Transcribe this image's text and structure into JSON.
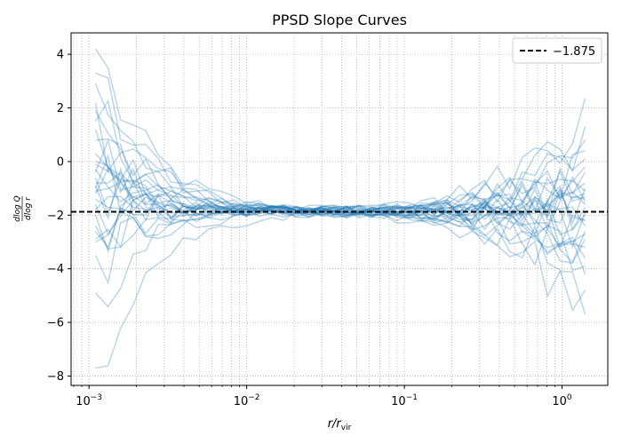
{
  "chart_data": {
    "type": "line",
    "title": "PPSD Slope Curves",
    "xlabel": "r/r_vir",
    "xlabel_main": "r/r",
    "xlabel_sub": "vir",
    "ylabel": "dlog Q / dlog r",
    "ylabel_num": "dlog Q",
    "ylabel_den": "dlog r",
    "xscale": "log",
    "xlim": [
      0.00077,
      1.95
    ],
    "ylim": [
      -8.35,
      4.8
    ],
    "x_ticks": [
      {
        "value": 0.001,
        "base": "10",
        "exp": "−3"
      },
      {
        "value": 0.01,
        "base": "10",
        "exp": "−2"
      },
      {
        "value": 0.1,
        "base": "10",
        "exp": "−1"
      },
      {
        "value": 1,
        "base": "10",
        "exp": "0"
      }
    ],
    "y_ticks": [
      {
        "value": 4,
        "label": "4"
      },
      {
        "value": 2,
        "label": "2"
      },
      {
        "value": 0,
        "label": "0"
      },
      {
        "value": -2,
        "label": "−2"
      },
      {
        "value": -4,
        "label": "−4"
      },
      {
        "value": -6,
        "label": "−6"
      },
      {
        "value": -8,
        "label": "−8"
      }
    ],
    "grid": true,
    "grid_style": "dotted",
    "legend_position": "top-right",
    "reference_line": {
      "y": -1.875,
      "label": "−1.875",
      "color": "#000000",
      "style": "dashed"
    },
    "series_color": "#1f77b4",
    "series_alpha": 0.3,
    "x_range": [
      0.0011,
      1.4
    ],
    "n_points": 40,
    "envelope": {
      "x": [
        0.0011,
        0.0015,
        0.002,
        0.003,
        0.005,
        0.01,
        0.02,
        0.05,
        0.1,
        0.2,
        0.3,
        0.5,
        0.7,
        1.0,
        1.4
      ],
      "spread": [
        4.0,
        1.7,
        1.0,
        0.8,
        0.4,
        0.3,
        0.25,
        0.25,
        0.3,
        0.55,
        0.8,
        1.0,
        1.4,
        1.8,
        2.4
      ]
    },
    "series": [
      {
        "y0": 4.2,
        "y1": -1.3
      },
      {
        "y0": 3.3,
        "y1": -2.2
      },
      {
        "y0": 2.9,
        "y1": -0.8
      },
      {
        "y0": 2.2,
        "y1": -3.9
      },
      {
        "y0": 1.9,
        "y1": -1.6
      },
      {
        "y0": 1.2,
        "y1": 0.1
      },
      {
        "y0": 0.8,
        "y1": -2.7
      },
      {
        "y0": 0.3,
        "y1": -1.1
      },
      {
        "y0": -0.1,
        "y1": -4.8
      },
      {
        "y0": -0.4,
        "y1": 2.35
      },
      {
        "y0": -0.6,
        "y1": -1.9
      },
      {
        "y0": -0.8,
        "y1": -0.4
      },
      {
        "y0": -1.0,
        "y1": -3.2
      },
      {
        "y0": -1.1,
        "y1": -1.4
      },
      {
        "y0": -1.2,
        "y1": 0.8
      },
      {
        "y0": -1.4,
        "y1": -2.4
      },
      {
        "y0": -1.6,
        "y1": -5.7
      },
      {
        "y0": -2.0,
        "y1": -1.2
      },
      {
        "y0": -2.4,
        "y1": -3.6
      },
      {
        "y0": -2.9,
        "y1": 0.4
      },
      {
        "y0": -3.0,
        "y1": -2.0
      },
      {
        "y0": -3.5,
        "y1": -1.7
      },
      {
        "y0": -4.9,
        "y1": -2.9
      },
      {
        "y0": -7.7,
        "y1": -1.0
      },
      {
        "y0": 0.0,
        "y1": -2.6
      },
      {
        "y0": -0.9,
        "y1": -0.2
      },
      {
        "y0": -1.8,
        "y1": -4.2
      },
      {
        "y0": 1.5,
        "y1": -1.5
      },
      {
        "y0": -2.6,
        "y1": 1.3
      },
      {
        "y0": -0.3,
        "y1": -2.2
      }
    ]
  }
}
